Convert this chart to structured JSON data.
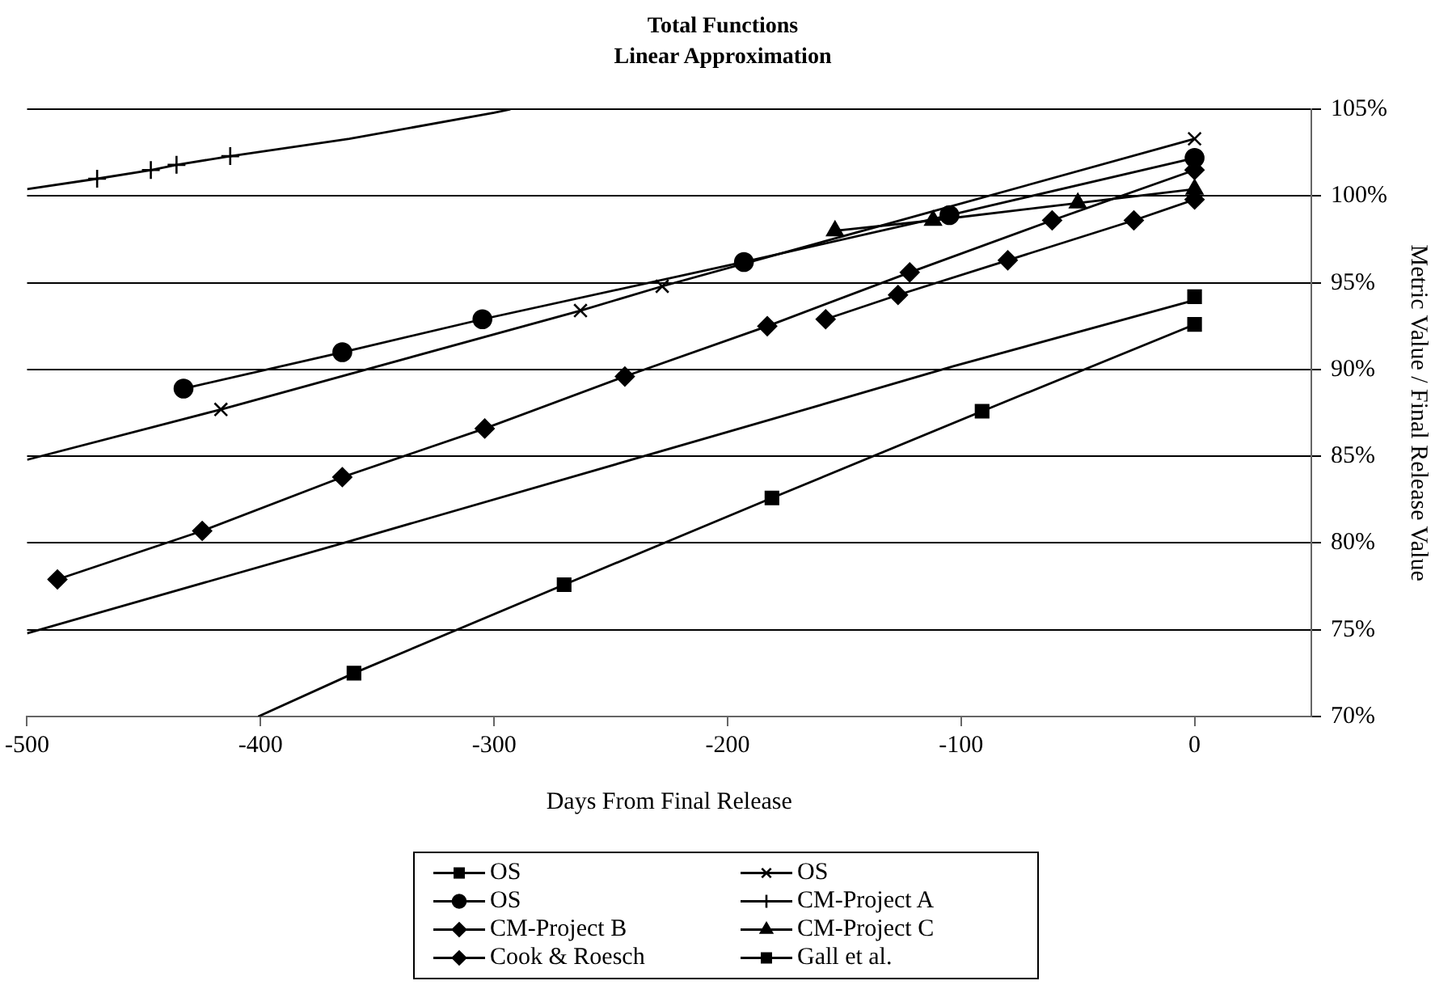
{
  "chart_data": {
    "type": "line",
    "title": "Total Functions",
    "subtitle": "Linear Approximation",
    "xlabel": "Days From Final Release",
    "y2label": "Metric Value / Final Release Value",
    "xlim": [
      -500,
      50
    ],
    "xticks": [
      -500,
      -400,
      -300,
      -200,
      -100,
      0
    ],
    "y2lim": [
      70,
      105
    ],
    "y2ticks": [
      {
        "value": 70,
        "label": "70%"
      },
      {
        "value": 75,
        "label": "75%"
      },
      {
        "value": 80,
        "label": "80%"
      },
      {
        "value": 85,
        "label": "85%"
      },
      {
        "value": 90,
        "label": "90%"
      },
      {
        "value": 95,
        "label": "95%"
      },
      {
        "value": 100,
        "label": "100%"
      },
      {
        "value": 105,
        "label": "105%"
      }
    ],
    "grid": "y",
    "legend": "bottom",
    "line_style": "solid",
    "series": [
      {
        "name": "OS",
        "color": "#000000",
        "marker": "square",
        "axis": "y2",
        "x": [
          0
        ],
        "values": [
          94.2
        ]
      },
      {
        "name": "OS",
        "color": "#000000",
        "marker": "cross",
        "axis": "y2",
        "x": [
          -417,
          -263,
          -228,
          0
        ],
        "values": [
          87.7,
          93.4,
          94.8,
          103.3
        ]
      },
      {
        "name": "OS",
        "color": "#000000",
        "marker": "circle",
        "axis": "y2",
        "x": [
          -433,
          -365,
          -305,
          -193,
          -105,
          0
        ],
        "values": [
          88.9,
          91.0,
          92.9,
          96.2,
          98.9,
          102.2
        ]
      },
      {
        "name": "CM-Project A",
        "color": "#000000",
        "marker": "plus",
        "axis": "y2",
        "x": [
          -470,
          -447,
          -436,
          -413
        ],
        "values": [
          101.0,
          101.5,
          101.8,
          102.3
        ]
      },
      {
        "name": "CM-Project B",
        "color": "#000000",
        "marker": "diamond",
        "axis": "y2",
        "x": [
          -158,
          -127,
          -80,
          -26,
          0
        ],
        "values": [
          92.9,
          94.3,
          96.3,
          98.6,
          99.8
        ]
      },
      {
        "name": "CM-Project C",
        "color": "#000000",
        "marker": "triangle",
        "axis": "y2",
        "x": [
          -154,
          -112,
          -50,
          0
        ],
        "values": [
          98.0,
          98.6,
          99.6,
          100.4
        ]
      },
      {
        "name": "Cook & Roesch",
        "color": "#000000",
        "marker": "diamond",
        "axis": "y2",
        "x": [
          -487,
          -425,
          -365,
          -304,
          -244,
          -183,
          -122,
          -61,
          0
        ],
        "values": [
          77.9,
          80.7,
          83.8,
          86.6,
          89.6,
          92.5,
          95.6,
          98.6,
          101.5
        ]
      },
      {
        "name": "Gall et al.",
        "color": "#000000",
        "marker": "square",
        "axis": "y2",
        "x": [
          -360,
          -270,
          -181,
          -91,
          0
        ],
        "values": [
          72.5,
          77.6,
          82.6,
          87.6,
          92.6
        ]
      },
      {
        "color": "#000000",
        "marker": "none",
        "axis": "y2",
        "x": [
          -500,
          -362,
          -182,
          -103,
          0
        ],
        "values": [
          74.8,
          80.1,
          87.1,
          90.2,
          94.0
        ]
      },
      {
        "color": "#000000",
        "marker": "none",
        "axis": "y2",
        "x": [
          -500,
          -417
        ],
        "values": [
          84.8,
          87.7
        ]
      },
      {
        "color": "#000000",
        "marker": "none",
        "axis": "y2",
        "x": [
          -500,
          -470
        ],
        "values": [
          100.4,
          101.0
        ]
      },
      {
        "color": "#000000",
        "marker": "none",
        "axis": "y2",
        "x": [
          -413,
          -362,
          -300,
          -293
        ],
        "values": [
          102.3,
          103.3,
          104.8,
          105
        ]
      },
      {
        "color": "#000000",
        "marker": "none",
        "axis": "y2",
        "x": [
          -401,
          -360
        ],
        "values": [
          70,
          72.5
        ]
      }
    ]
  }
}
